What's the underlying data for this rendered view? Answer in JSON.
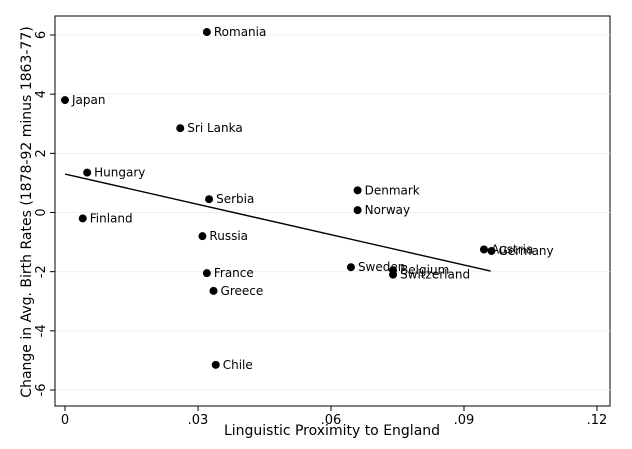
{
  "chart_data": {
    "type": "scatter",
    "title": "",
    "xlabel": "Linguistic Proximity to England",
    "ylabel": "Change in Avg. Birth Rates (1878-92 minus 1863-77)",
    "xlim": [
      0,
      0.12
    ],
    "ylim": [
      -6,
      6
    ],
    "x_ticks": [
      0,
      0.03,
      0.06,
      0.09,
      0.12
    ],
    "x_tick_labels": [
      "0",
      ".03",
      ".06",
      ".09",
      ".12"
    ],
    "y_ticks": [
      -6,
      -4,
      -2,
      0,
      2,
      4,
      6
    ],
    "y_tick_labels": [
      "-6",
      "-4",
      "-2",
      "0",
      "2",
      "4",
      "6"
    ],
    "grid": "horizontal",
    "points": [
      {
        "label": "Romania",
        "x": 0.032,
        "y": 6.1
      },
      {
        "label": "Japan",
        "x": 0.0,
        "y": 3.8
      },
      {
        "label": "Sri Lanka",
        "x": 0.026,
        "y": 2.85
      },
      {
        "label": "Hungary",
        "x": 0.005,
        "y": 1.35
      },
      {
        "label": "Denmark",
        "x": 0.066,
        "y": 0.75
      },
      {
        "label": "Serbia",
        "x": 0.0325,
        "y": 0.45
      },
      {
        "label": "Norway",
        "x": 0.066,
        "y": 0.08
      },
      {
        "label": "Finland",
        "x": 0.004,
        "y": -0.2
      },
      {
        "label": "Russia",
        "x": 0.031,
        "y": -0.8
      },
      {
        "label": "Austria",
        "x": 0.0945,
        "y": -1.25
      },
      {
        "label": "Germany",
        "x": 0.0962,
        "y": -1.3
      },
      {
        "label": "Sweden",
        "x": 0.0645,
        "y": -1.85
      },
      {
        "label": "Belgium",
        "x": 0.074,
        "y": -1.95
      },
      {
        "label": "Switzerland",
        "x": 0.074,
        "y": -2.1
      },
      {
        "label": "France",
        "x": 0.032,
        "y": -2.05
      },
      {
        "label": "Greece",
        "x": 0.0335,
        "y": -2.65
      },
      {
        "label": "Chile",
        "x": 0.034,
        "y": -5.15
      }
    ],
    "fit_line": {
      "x": [
        0,
        0.096
      ],
      "y": [
        1.3,
        -1.98
      ]
    }
  }
}
